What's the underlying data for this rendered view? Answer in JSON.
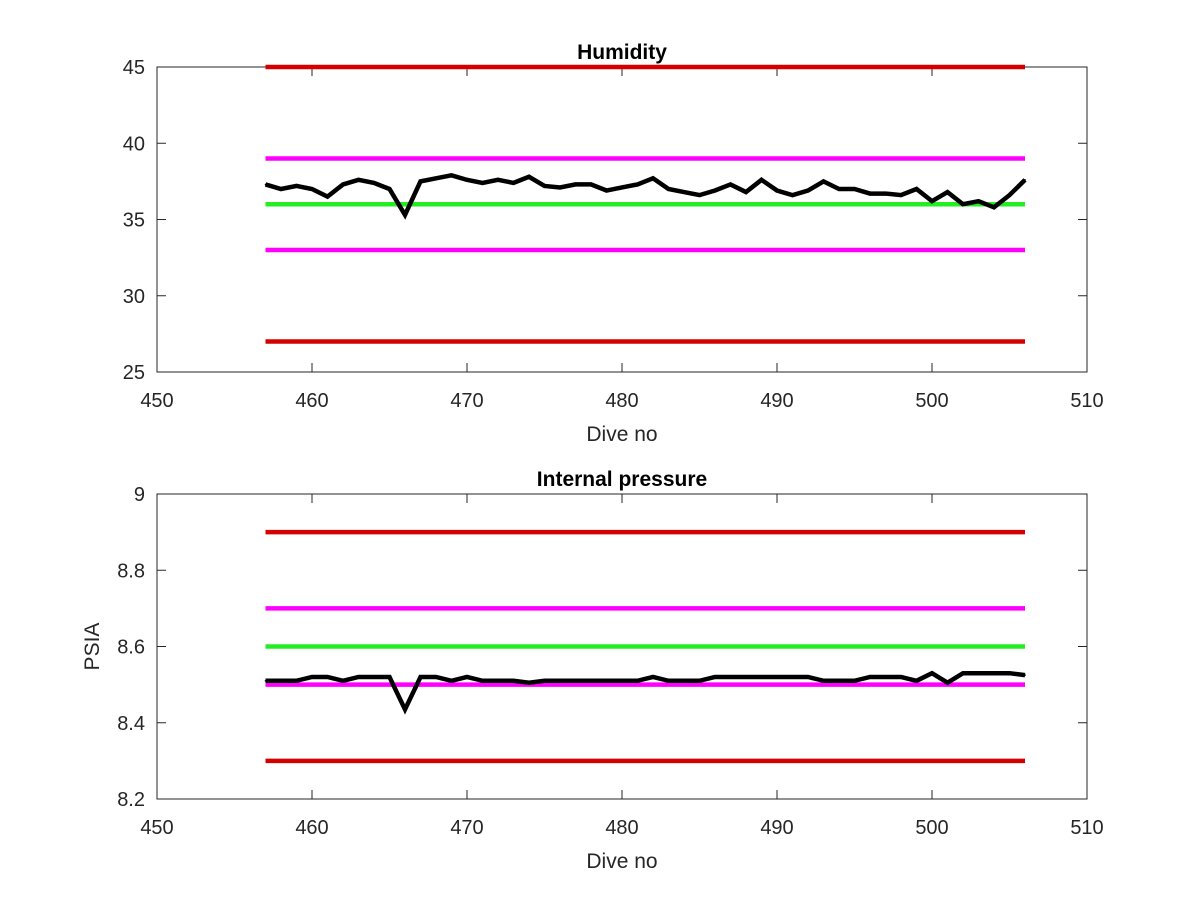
{
  "chart_data": [
    {
      "type": "line",
      "title": "Humidity",
      "xlabel": "Dive no",
      "ylabel": "",
      "xlim": [
        450,
        510
      ],
      "ylim": [
        25,
        45
      ],
      "xticks": [
        450,
        460,
        470,
        480,
        490,
        500,
        510
      ],
      "yticks": [
        25,
        30,
        35,
        40,
        45
      ],
      "grid": false,
      "reference_lines": [
        {
          "y": 45,
          "color": "#d40000",
          "x": [
            457,
            506
          ]
        },
        {
          "y": 39,
          "color": "#ff00ff",
          "x": [
            457,
            506
          ]
        },
        {
          "y": 36,
          "color": "#22ee22",
          "x": [
            457,
            506
          ]
        },
        {
          "y": 33,
          "color": "#ff00ff",
          "x": [
            457,
            506
          ]
        },
        {
          "y": 27,
          "color": "#d40000",
          "x": [
            457,
            506
          ]
        }
      ],
      "series": [
        {
          "color": "#000000",
          "x": [
            457,
            458,
            459,
            460,
            461,
            462,
            463,
            464,
            465,
            466,
            467,
            468,
            469,
            470,
            471,
            472,
            473,
            474,
            475,
            476,
            477,
            478,
            479,
            480,
            481,
            482,
            483,
            484,
            485,
            486,
            487,
            488,
            489,
            490,
            491,
            492,
            493,
            494,
            495,
            496,
            497,
            498,
            499,
            500,
            501,
            502,
            503,
            504,
            505,
            506
          ],
          "values": [
            37.3,
            37.0,
            37.2,
            37.0,
            36.5,
            37.3,
            37.6,
            37.4,
            37.0,
            35.3,
            37.5,
            37.7,
            37.9,
            37.6,
            37.4,
            37.6,
            37.4,
            37.8,
            37.2,
            37.1,
            37.3,
            37.3,
            36.9,
            37.1,
            37.3,
            37.7,
            37.0,
            36.8,
            36.6,
            36.9,
            37.3,
            36.8,
            37.6,
            36.9,
            36.6,
            36.9,
            37.5,
            37.0,
            37.0,
            36.7,
            36.7,
            36.6,
            37.0,
            36.2,
            36.8,
            36.0,
            36.2,
            35.8,
            36.6,
            37.6
          ]
        }
      ]
    },
    {
      "type": "line",
      "title": "Internal pressure",
      "xlabel": "Dive no",
      "ylabel": "PSIA",
      "xlim": [
        450,
        510
      ],
      "ylim": [
        8.2,
        9
      ],
      "xticks": [
        450,
        460,
        470,
        480,
        490,
        500,
        510
      ],
      "yticks": [
        8.2,
        8.4,
        8.6,
        8.8,
        9
      ],
      "ytick_labels": [
        "8.2",
        "8.4",
        "8.6",
        "8.8",
        "9"
      ],
      "grid": false,
      "reference_lines": [
        {
          "y": 8.9,
          "color": "#d40000",
          "x": [
            457,
            506
          ]
        },
        {
          "y": 8.7,
          "color": "#ff00ff",
          "x": [
            457,
            506
          ]
        },
        {
          "y": 8.6,
          "color": "#22ee22",
          "x": [
            457,
            506
          ]
        },
        {
          "y": 8.5,
          "color": "#ff00ff",
          "x": [
            457,
            506
          ]
        },
        {
          "y": 8.3,
          "color": "#d40000",
          "x": [
            457,
            506
          ]
        }
      ],
      "series": [
        {
          "color": "#000000",
          "x": [
            457,
            458,
            459,
            460,
            461,
            462,
            463,
            464,
            465,
            466,
            467,
            468,
            469,
            470,
            471,
            472,
            473,
            474,
            475,
            476,
            477,
            478,
            479,
            480,
            481,
            482,
            483,
            484,
            485,
            486,
            487,
            488,
            489,
            490,
            491,
            492,
            493,
            494,
            495,
            496,
            497,
            498,
            499,
            500,
            501,
            502,
            503,
            504,
            505,
            506
          ],
          "values": [
            8.51,
            8.51,
            8.51,
            8.52,
            8.52,
            8.51,
            8.52,
            8.52,
            8.52,
            8.435,
            8.52,
            8.52,
            8.51,
            8.52,
            8.51,
            8.51,
            8.51,
            8.505,
            8.51,
            8.51,
            8.51,
            8.51,
            8.51,
            8.51,
            8.51,
            8.52,
            8.51,
            8.51,
            8.51,
            8.52,
            8.52,
            8.52,
            8.52,
            8.52,
            8.52,
            8.52,
            8.51,
            8.51,
            8.51,
            8.52,
            8.52,
            8.52,
            8.51,
            8.53,
            8.505,
            8.53,
            8.53,
            8.53,
            8.53,
            8.525
          ]
        }
      ]
    }
  ]
}
